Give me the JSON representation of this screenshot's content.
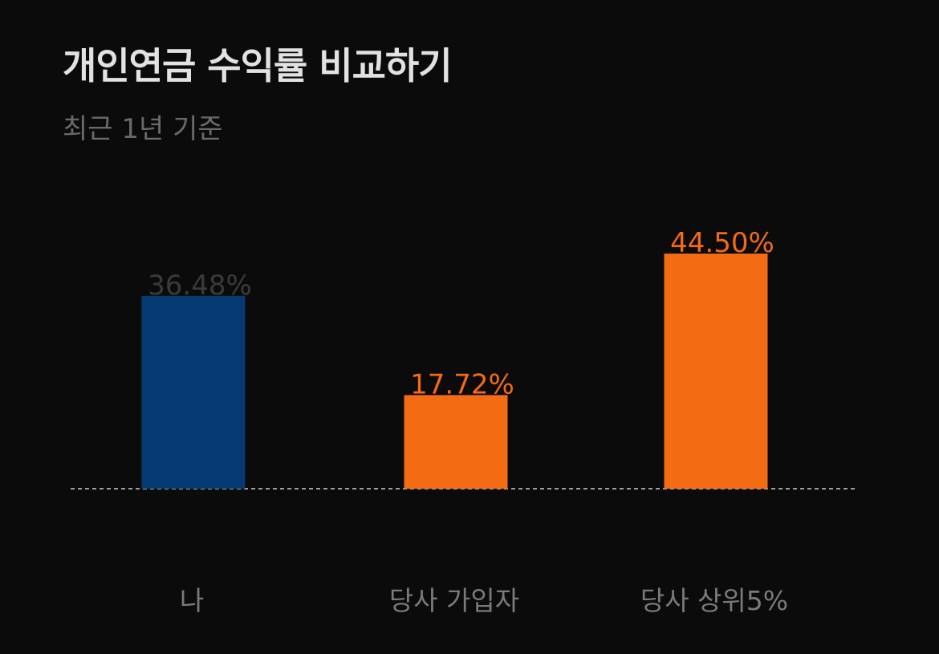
{
  "title": "개인연금 수익률 비교하기",
  "subtitle": "최근 1년 기준",
  "chart_data": {
    "type": "bar",
    "categories": [
      "나",
      "당사 가입자",
      "당사 상위5%"
    ],
    "values": [
      36.48,
      17.72,
      44.5
    ],
    "value_labels": [
      "36.48%",
      "17.72%",
      "44.50%"
    ],
    "colors": [
      "#063a72",
      "#f36b13",
      "#f36b13"
    ],
    "label_colors": [
      "#3a3a3a",
      "#f36b13",
      "#f36b13"
    ],
    "ylim": [
      0,
      44.5
    ],
    "grid": false,
    "baseline": "dashed"
  }
}
